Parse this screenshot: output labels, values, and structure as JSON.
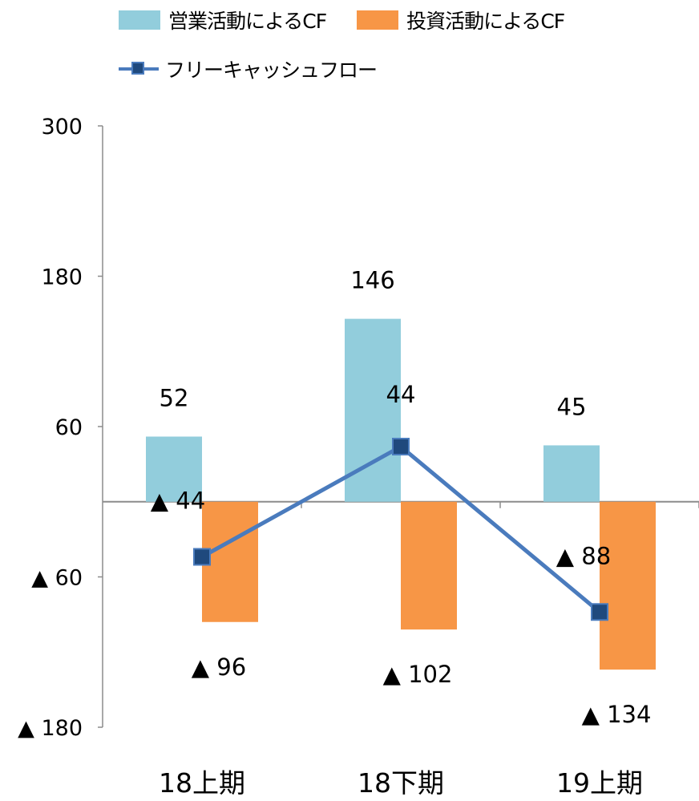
{
  "chart_data": {
    "type": "bar",
    "categories": [
      "18上期",
      "18下期",
      "19上期"
    ],
    "series": [
      {
        "name": "営業活動によるCF",
        "kind": "bar",
        "color": "#92cddc",
        "values": [
          52,
          146,
          45
        ],
        "labels": [
          "52",
          "146",
          "45"
        ]
      },
      {
        "name": "投資活動によるCF",
        "kind": "bar",
        "color": "#f79646",
        "values": [
          -96,
          -102,
          -134
        ],
        "labels": [
          "▲ 96",
          "▲ 102",
          "▲ 134"
        ]
      },
      {
        "name": "フリーキャッシュフロー",
        "kind": "line",
        "color": "#4a7bbd",
        "marker_color": "#1f497d",
        "values": [
          -44,
          44,
          -88
        ],
        "labels": [
          "▲ 44",
          "44",
          "▲ 88"
        ]
      }
    ],
    "yaxis": {
      "min": -180,
      "max": 300,
      "ticks": [
        300,
        180,
        60,
        -60,
        -180
      ],
      "tick_labels": [
        "300",
        "180",
        "60",
        "▲ 60",
        "▲ 180"
      ]
    },
    "legend": "top-left",
    "grid": false
  }
}
